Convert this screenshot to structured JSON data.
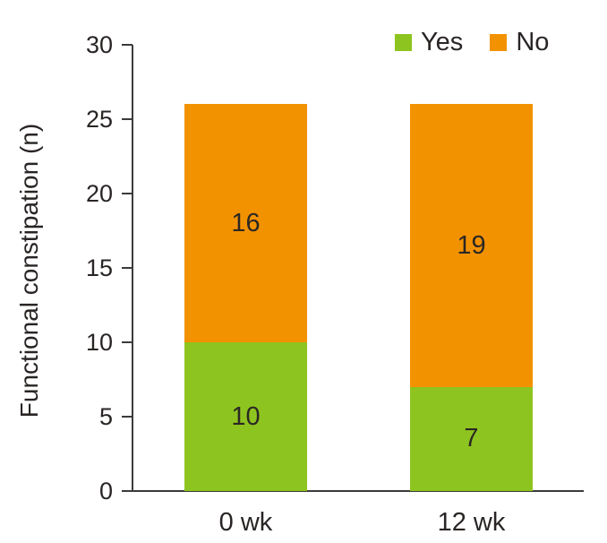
{
  "chart_data": {
    "type": "bar",
    "stacked": true,
    "title": "",
    "categories": [
      "0 wk",
      "12 wk"
    ],
    "series": [
      {
        "name": "Yes",
        "color": "#8ec41f",
        "values": [
          10,
          7
        ]
      },
      {
        "name": "No",
        "color": "#f39200",
        "values": [
          16,
          19
        ]
      }
    ],
    "xlabel": "",
    "ylabel": "Functional constipation (n)",
    "ylim": [
      0,
      30
    ],
    "yticks": [
      0,
      5,
      10,
      15,
      20,
      25,
      30
    ],
    "grid": false,
    "legend_position": "top-right",
    "bar_value_labels_shown": true,
    "axis_color": "#3b3b3b",
    "text_color": "#292524"
  }
}
